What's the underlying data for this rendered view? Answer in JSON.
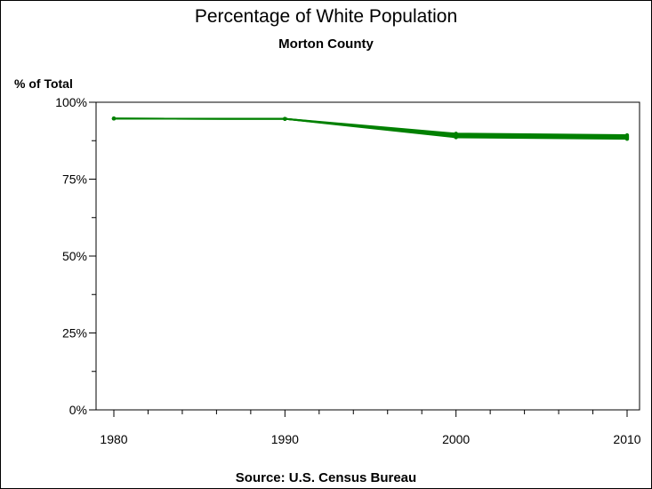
{
  "chart_data": {
    "type": "line",
    "title": "Percentage of White Population",
    "subtitle": "Morton County",
    "ylabel": "% of Total",
    "xlabel": "",
    "source": "Source: U.S. Census Bureau",
    "x": [
      1980,
      1990,
      2000,
      2010
    ],
    "x_tick_labels": [
      "1980",
      "1990",
      "2000",
      "2010"
    ],
    "y_tick_labels": [
      "0%",
      "25%",
      "50%",
      "75%",
      "100%"
    ],
    "y_ticks": [
      0,
      25,
      50,
      75,
      100
    ],
    "xlim": [
      1980,
      2010
    ],
    "ylim": [
      0,
      100
    ],
    "grid": false,
    "legend": "none",
    "series_color": "#008000",
    "series": [
      {
        "values": [
          94.7,
          94.6,
          89.8,
          89.3
        ]
      },
      {
        "values": [
          94.7,
          94.6,
          89.4,
          88.9
        ]
      },
      {
        "values": [
          94.7,
          94.6,
          89.0,
          88.5
        ]
      },
      {
        "values": [
          94.7,
          94.6,
          88.6,
          88.1
        ]
      }
    ]
  }
}
